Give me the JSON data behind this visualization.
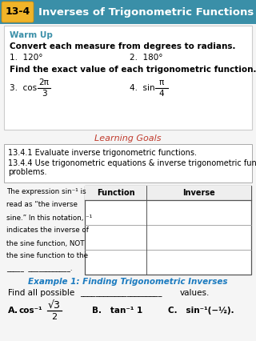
{
  "header_bg": "#3a8fa8",
  "header_label": "13-4",
  "header_label_bg": "#f0b429",
  "header_text": "Inverses of Trigonometric Functions",
  "header_text_color": "#ffffff",
  "warmup_title": "Warm Up",
  "warmup_title_color": "#3a8fa8",
  "warmup_line1": "Convert each measure from degrees to radians.",
  "warmup_q1": "1.  120°",
  "warmup_q2": "2.  180°",
  "warmup_line2": "Find the exact value of each trigonometric function.",
  "warmup_q3_pre": "3.  cos",
  "warmup_q3_frac_num": "2π",
  "warmup_q3_frac_den": "3",
  "warmup_q4_pre": "4.  sin",
  "warmup_q4_frac_num": "π",
  "warmup_q4_frac_den": "4",
  "learning_goals_title": "Learning Goals",
  "learning_goals_title_color": "#c0392b",
  "learning_goals_1": "13.4.1 Evaluate inverse trigonometric functions.",
  "learning_goals_2": "13.4.4 Use trigonometric equations & inverse trigonometric functions to solve",
  "learning_goals_3": "problems.",
  "sidebar_lines": [
    "The expression sin⁻¹ is",
    "read as “the inverse",
    "sine.” In this notation, ⁻¹",
    "indicates the inverse of",
    "the sine function, NOT",
    "the sine function to the",
    "_____  ____________."
  ],
  "table_header_1": "Function",
  "table_header_2": "Inverse",
  "example_title": "Example 1: Finding Trigonometric Inverses",
  "example_title_color": "#1a7abf",
  "example_line1": "Find all possible",
  "example_line2": "values.",
  "example_blank": "_____________________",
  "ex_A_label": "A.",
  "ex_A_func": "cos⁻¹",
  "ex_A_frac_num": "√3",
  "ex_A_frac_den": "2",
  "ex_B": "B.   tan⁻¹ 1",
  "ex_C": "C.   sin⁻¹(−½).",
  "bg_color": "#f5f5f5",
  "text_color": "#000000"
}
